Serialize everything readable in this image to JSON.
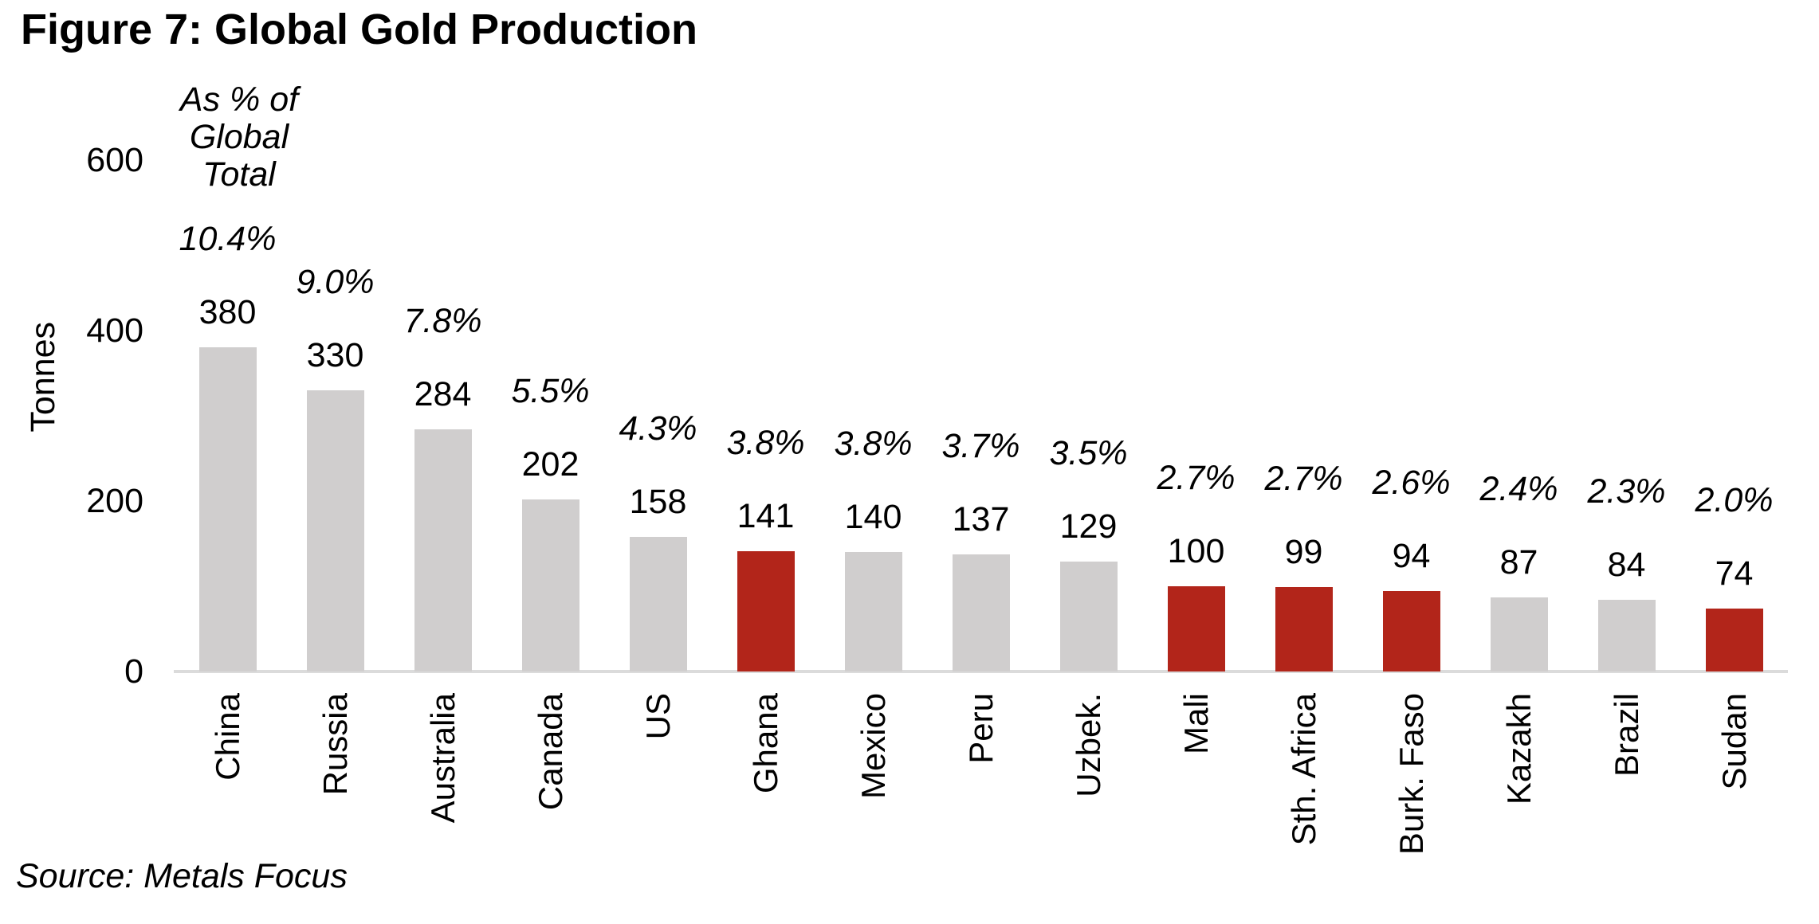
{
  "title": "Figure 7: Global Gold Production",
  "axis_header": {
    "lines": [
      "As % of",
      "Global",
      "Total"
    ]
  },
  "y_axis": {
    "label": "Tonnes",
    "ticks": [
      "600",
      "400",
      "200",
      "0"
    ],
    "tick_values": [
      600,
      400,
      200,
      0
    ]
  },
  "source": "Source: Metals Focus",
  "colors": {
    "bar_default": "#d0cece",
    "bar_highlight": "#b2251a",
    "axis_line": "#dbdbdb",
    "text": "#000000"
  },
  "chart_data": {
    "type": "bar",
    "title": "Figure 7: Global Gold Production",
    "ylabel": "Tonnes",
    "ylim": [
      0,
      600
    ],
    "y_ticks": [
      0,
      200,
      400,
      600
    ],
    "grid": false,
    "legend": false,
    "categories": [
      "China",
      "Russia",
      "Australia",
      "Canada",
      "US",
      "Ghana",
      "Mexico",
      "Peru",
      "Uzbek.",
      "Mali",
      "Sth. Africa",
      "Burk. Faso",
      "Kazakh",
      "Brazil",
      "Sudan"
    ],
    "values": [
      380,
      330,
      284,
      202,
      158,
      141,
      140,
      137,
      129,
      100,
      99,
      94,
      87,
      84,
      74
    ],
    "pct_of_global_total": [
      "10.4%",
      "9.0%",
      "7.8%",
      "5.5%",
      "4.3%",
      "3.8%",
      "3.8%",
      "3.7%",
      "3.5%",
      "2.7%",
      "2.7%",
      "2.6%",
      "2.4%",
      "2.3%",
      "2.0%"
    ],
    "pct_column_header": "As % of Global Total",
    "highlighted_categories": [
      "Ghana",
      "Mali",
      "Sth. Africa",
      "Burk. Faso",
      "Sudan"
    ],
    "bar_color_default": "#d0cece",
    "bar_color_highlight": "#b2251a",
    "source": "Source: Metals Focus"
  }
}
